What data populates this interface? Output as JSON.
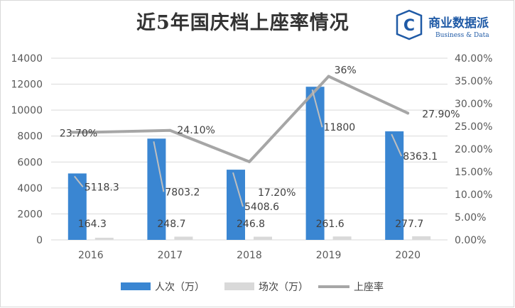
{
  "title": "近5年国庆档上座率情况",
  "logo": {
    "name": "商业数据派",
    "subtitle": "Business & Data",
    "badge_letter": "C",
    "brand_color": "#1f5aa6"
  },
  "chart_data": {
    "type": "bar",
    "categories": [
      "2016",
      "2017",
      "2018",
      "2019",
      "2020"
    ],
    "series": [
      {
        "name": "人次（万）",
        "kind": "bar",
        "axis": "left",
        "color": "#3a86d2",
        "values": [
          5118.3,
          7803.2,
          5408.6,
          11800,
          8363.1
        ],
        "labels": [
          "5118.3",
          "7803.2",
          "5408.6",
          "11800",
          "8363.1"
        ]
      },
      {
        "name": "场次（万）",
        "kind": "bar",
        "axis": "left",
        "color": "#d9d9d9",
        "values": [
          164.3,
          248.7,
          246.8,
          261.6,
          277.7
        ],
        "labels": [
          "164.3",
          "248.7",
          "246.8",
          "261.6",
          "277.7"
        ]
      },
      {
        "name": "上座率",
        "kind": "line",
        "axis": "right",
        "color": "#a6a6a6",
        "values": [
          23.7,
          24.1,
          17.2,
          36.0,
          27.9
        ],
        "labels": [
          "23.70%",
          "24.10%",
          "17.20%",
          "36%",
          "27.90%"
        ]
      }
    ],
    "y_left": {
      "min": 0,
      "max": 14000,
      "ticks": [
        "0",
        "2000",
        "4000",
        "6000",
        "8000",
        "10000",
        "12000",
        "14000"
      ]
    },
    "y_right": {
      "min": 0,
      "max": 40,
      "ticks": [
        "0.00%",
        "5.00%",
        "10.00%",
        "15.00%",
        "20.00%",
        "25.00%",
        "30.00%",
        "35.00%",
        "40.00%"
      ]
    },
    "grid": true,
    "legend": "bottom"
  }
}
